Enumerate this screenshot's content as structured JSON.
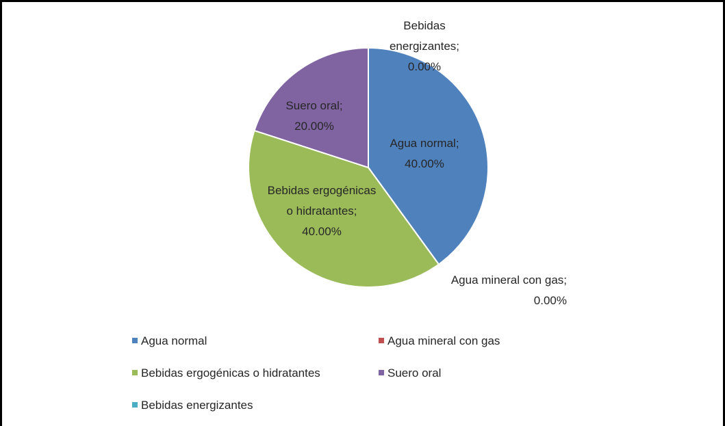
{
  "chart_data": {
    "type": "pie",
    "categories": [
      "Agua normal",
      "Agua mineral con gas",
      "Bebidas ergogénicas o hidratantes",
      "Suero oral",
      "Bebidas energizantes"
    ],
    "values": [
      40,
      0,
      40,
      20,
      0
    ],
    "value_labels": [
      "Agua normal; 40.00%",
      "Agua mineral con gas; 0.00%",
      "Bebidas ergogénicas o hidratantes; 40.00%",
      "Suero oral; 20.00%",
      "Bebidas energizantes; 0.00%"
    ],
    "colors": [
      "#4f81bd",
      "#c0504d",
      "#9bbb59",
      "#8064a2",
      "#4bacc6"
    ],
    "legend": "bottom"
  }
}
